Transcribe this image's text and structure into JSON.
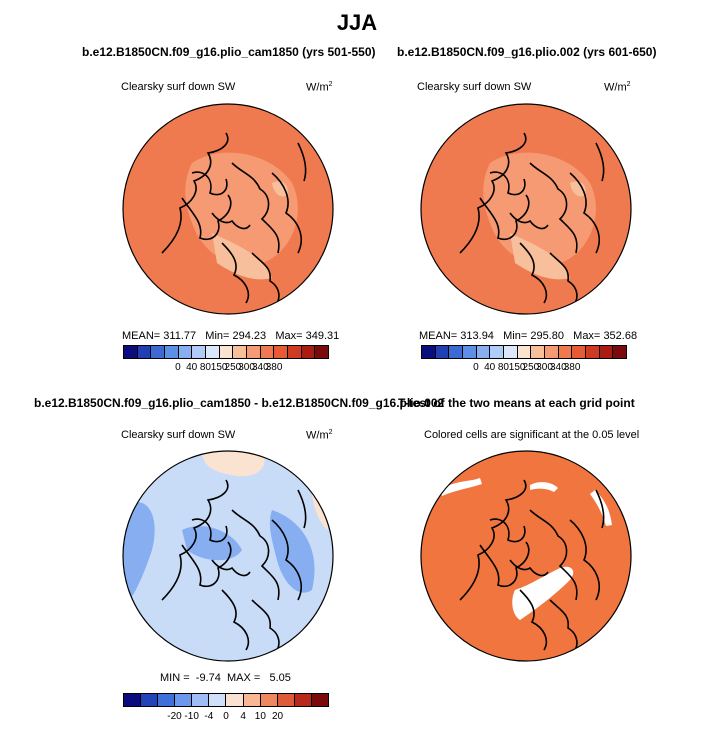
{
  "figure": {
    "title": "JJA"
  },
  "panels": [
    {
      "title": "b.e12.B1850CN.f09_g16.plio_cam1850 (yrs 501-550)",
      "label": "Clearsky surf down SW",
      "units": "W/m",
      "units_sup": "2",
      "stats": {
        "mean_label": "MEAN=",
        "mean": "311.77",
        "min_label": "Min=",
        "min": "294.23",
        "max_label": "Max=",
        "max": "349.31"
      },
      "colorbar_ticks": [
        "0",
        "40",
        "80",
        "150",
        "250",
        "300",
        "340",
        "380"
      ]
    },
    {
      "title": "b.e12.B1850CN.f09_g16.plio.002 (yrs 601-650)",
      "label": "Clearsky surf down SW",
      "units": "W/m",
      "units_sup": "2",
      "stats": {
        "mean_label": "MEAN=",
        "mean": "313.94",
        "min_label": "Min=",
        "min": "295.80",
        "max_label": "Max=",
        "max": "352.68"
      },
      "colorbar_ticks": [
        "0",
        "40",
        "80",
        "150",
        "250",
        "300",
        "340",
        "380"
      ]
    },
    {
      "title": "b.e12.B1850CN.f09_g16.plio_cam1850 - b.e12.B1850CN.f09_g16.plio.002",
      "label": "Clearsky surf down SW",
      "units": "W/m",
      "units_sup": "2",
      "stats": {
        "min_label": "MIN =",
        "min": "-9.74",
        "max_label": "MAX =",
        "max": "5.05"
      },
      "colorbar_ticks": [
        "-20",
        "-10",
        "-4",
        "0",
        "4",
        "10",
        "20"
      ]
    },
    {
      "title": "T-test of the two means at each grid point",
      "label": "Colored cells are significant at the 0.05 level"
    }
  ],
  "colors": {
    "abs_scale": [
      "#0b0c7e",
      "#1f3fb3",
      "#3b6ad6",
      "#5d8fe6",
      "#86aef0",
      "#b1cdf7",
      "#dce8fa",
      "#fbe3d2",
      "#f8bf9c",
      "#f59a72",
      "#ef7a4f",
      "#e85a33",
      "#d03a22",
      "#a91b14",
      "#7a0b0a"
    ],
    "diff_scale": [
      "#0b0c7e",
      "#2244b8",
      "#3f6fd8",
      "#6b98ec",
      "#9dbdf4",
      "#d0e0fa",
      "#fbe1cf",
      "#f7b893",
      "#ef8860",
      "#df5a37",
      "#b9281c",
      "#7a0b0a"
    ],
    "field_main": "#ef7a4f",
    "field_light": "#f59a72",
    "field_pale": "#f8bf9c",
    "diff_main": "#c8dcf8",
    "diff_dark": "#86aef0",
    "diff_warm": "#fbe3d2",
    "sig": "#f0753f"
  }
}
